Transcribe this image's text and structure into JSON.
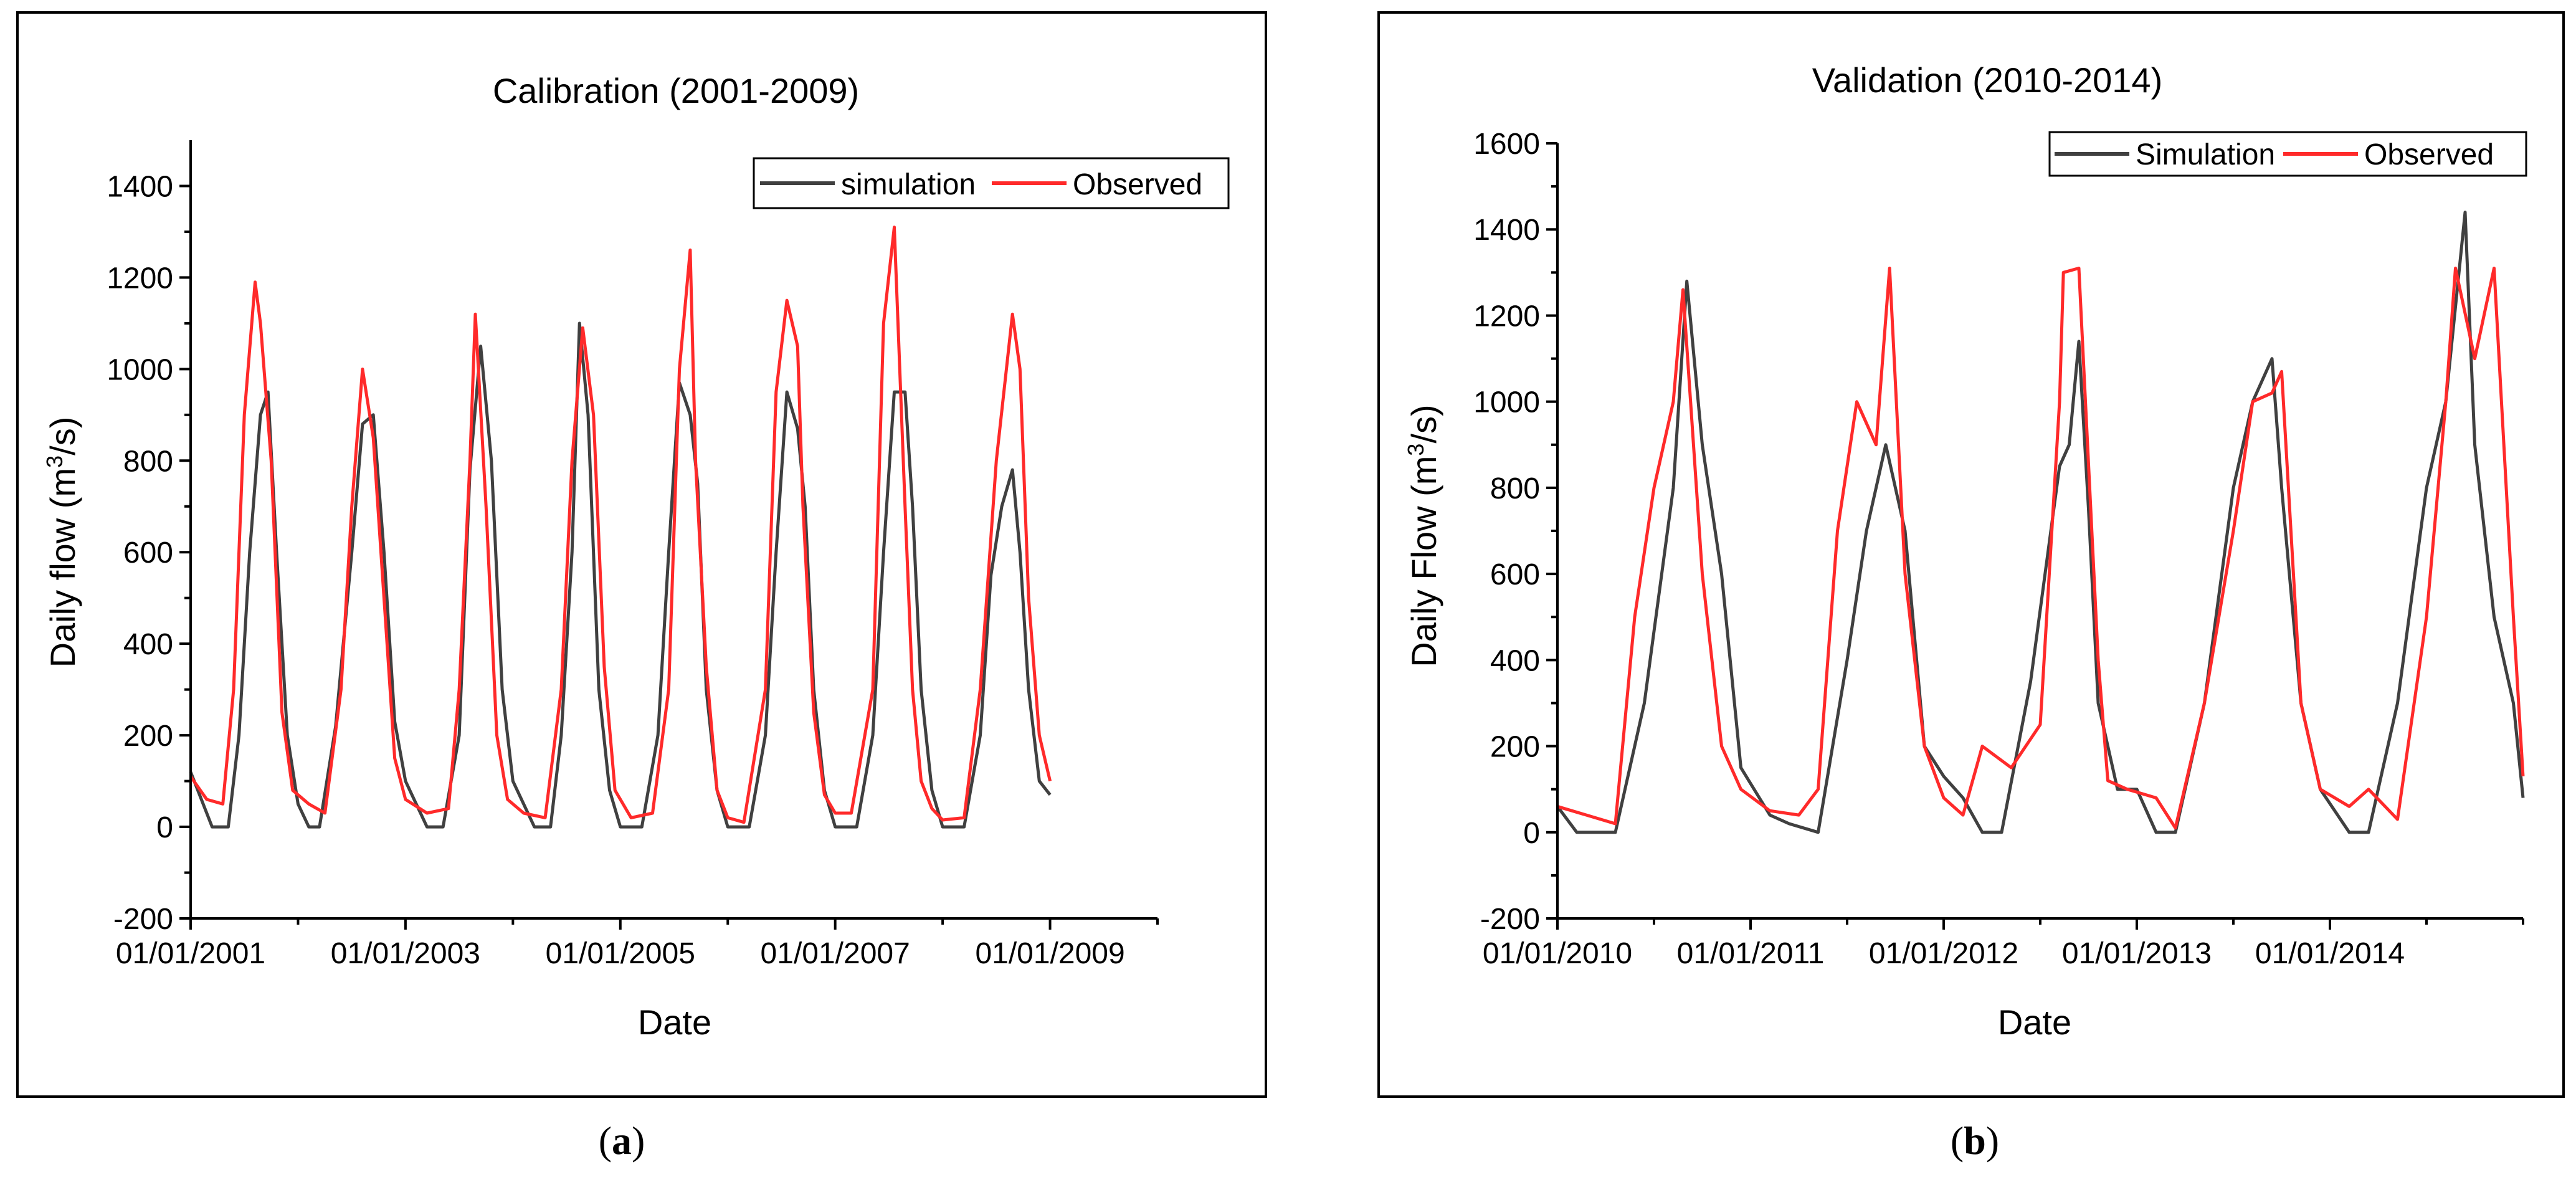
{
  "chart_data": [
    {
      "type": "line",
      "title": "Calibration (2001-2009)",
      "xlabel": "Date",
      "ylabel": "Daily flow (m",
      "ylabel_sup": "3",
      "ylabel_suffix": "/s)",
      "ylim": [
        -200,
        1500
      ],
      "yticks": [
        -200,
        0,
        200,
        400,
        600,
        800,
        1000,
        1200,
        1400
      ],
      "xlim": [
        2001.0,
        2010.0
      ],
      "xticks": [
        2001,
        2003,
        2005,
        2007,
        2009
      ],
      "xtick_labels": [
        "01/01/2001",
        "01/01/2003",
        "01/01/2005",
        "01/01/2007",
        "01/01/2009"
      ],
      "legend": "top-right",
      "caption_letter": "a",
      "series": [
        {
          "name": "simulation",
          "color": "#404040",
          "x": [
            2001.0,
            2001.2,
            2001.35,
            2001.45,
            2001.55,
            2001.65,
            2001.72,
            2001.8,
            2001.9,
            2002.0,
            2002.1,
            2002.2,
            2002.35,
            2002.5,
            2002.6,
            2002.7,
            2002.8,
            2002.9,
            2003.0,
            2003.2,
            2003.35,
            2003.5,
            2003.6,
            2003.7,
            2003.8,
            2003.9,
            2004.0,
            2004.2,
            2004.35,
            2004.45,
            2004.55,
            2004.62,
            2004.7,
            2004.8,
            2004.9,
            2005.0,
            2005.2,
            2005.35,
            2005.45,
            2005.55,
            2005.65,
            2005.72,
            2005.8,
            2005.9,
            2006.0,
            2006.2,
            2006.35,
            2006.45,
            2006.55,
            2006.65,
            2006.72,
            2006.8,
            2006.9,
            2007.0,
            2007.2,
            2007.35,
            2007.45,
            2007.55,
            2007.65,
            2007.72,
            2007.8,
            2007.9,
            2008.0,
            2008.2,
            2008.35,
            2008.45,
            2008.55,
            2008.65,
            2008.72,
            2008.8,
            2008.9,
            2009.0
          ],
          "y": [
            120,
            0,
            0,
            200,
            600,
            900,
            950,
            600,
            200,
            50,
            0,
            0,
            220,
            600,
            880,
            900,
            600,
            230,
            100,
            0,
            0,
            200,
            780,
            1050,
            800,
            300,
            100,
            0,
            0,
            200,
            600,
            1100,
            900,
            300,
            80,
            0,
            0,
            200,
            600,
            970,
            900,
            750,
            300,
            80,
            0,
            0,
            200,
            600,
            950,
            870,
            700,
            300,
            80,
            0,
            0,
            200,
            600,
            950,
            950,
            700,
            300,
            80,
            0,
            0,
            200,
            550,
            700,
            780,
            600,
            300,
            100,
            70
          ]
        },
        {
          "name": "Observed",
          "color": "#ff2a2a",
          "x": [
            2001.0,
            2001.15,
            2001.3,
            2001.4,
            2001.5,
            2001.6,
            2001.65,
            2001.75,
            2001.85,
            2001.95,
            2002.1,
            2002.25,
            2002.4,
            2002.5,
            2002.6,
            2002.7,
            2002.8,
            2002.9,
            2003.0,
            2003.2,
            2003.4,
            2003.5,
            2003.6,
            2003.65,
            2003.75,
            2003.85,
            2003.95,
            2004.1,
            2004.3,
            2004.45,
            2004.55,
            2004.65,
            2004.75,
            2004.85,
            2004.95,
            2005.1,
            2005.3,
            2005.45,
            2005.55,
            2005.65,
            2005.7,
            2005.8,
            2005.9,
            2006.0,
            2006.15,
            2006.35,
            2006.45,
            2006.55,
            2006.65,
            2006.7,
            2006.8,
            2006.9,
            2007.0,
            2007.15,
            2007.35,
            2007.45,
            2007.55,
            2007.65,
            2007.72,
            2007.8,
            2007.9,
            2008.0,
            2008.2,
            2008.35,
            2008.5,
            2008.65,
            2008.72,
            2008.8,
            2008.9,
            2009.0
          ],
          "y": [
            110,
            60,
            50,
            300,
            900,
            1190,
            1100,
            800,
            250,
            80,
            50,
            30,
            300,
            700,
            1000,
            850,
            500,
            150,
            60,
            30,
            40,
            300,
            800,
            1120,
            700,
            200,
            60,
            30,
            20,
            300,
            800,
            1090,
            900,
            350,
            80,
            20,
            30,
            300,
            1000,
            1260,
            800,
            350,
            80,
            20,
            10,
            300,
            950,
            1150,
            1050,
            700,
            250,
            70,
            30,
            30,
            300,
            1100,
            1310,
            700,
            300,
            100,
            40,
            15,
            20,
            300,
            800,
            1120,
            1000,
            500,
            200,
            100
          ]
        }
      ]
    },
    {
      "type": "line",
      "title": "Validation (2010-2014)",
      "xlabel": "Date",
      "ylabel": "Daily Flow (m",
      "ylabel_sup": "3",
      "ylabel_suffix": "/s)",
      "ylim": [
        -200,
        1600
      ],
      "yticks": [
        -200,
        0,
        200,
        400,
        600,
        800,
        1000,
        1200,
        1400,
        1600
      ],
      "xlim": [
        2010.0,
        2015.0
      ],
      "xticks": [
        2010,
        2011,
        2012,
        2013,
        2014
      ],
      "xtick_labels": [
        "01/01/2010",
        "01/01/2011",
        "01/01/2012",
        "01/01/2013",
        "01/01/2014"
      ],
      "legend": "top-right",
      "caption_letter": "b",
      "series": [
        {
          "name": "Simulation",
          "color": "#404040",
          "x": [
            2010.0,
            2010.1,
            2010.3,
            2010.45,
            2010.6,
            2010.67,
            2010.75,
            2010.85,
            2010.95,
            2011.1,
            2011.2,
            2011.35,
            2011.5,
            2011.6,
            2011.7,
            2011.8,
            2011.9,
            2012.0,
            2012.1,
            2012.2,
            2012.3,
            2012.45,
            2012.6,
            2012.65,
            2012.7,
            2012.75,
            2012.8,
            2012.9,
            2013.0,
            2013.1,
            2013.2,
            2013.35,
            2013.5,
            2013.6,
            2013.7,
            2013.75,
            2013.85,
            2013.95,
            2014.1,
            2014.2,
            2014.35,
            2014.5,
            2014.6,
            2014.7,
            2014.75,
            2014.85,
            2014.95,
            2015.0
          ],
          "y": [
            60,
            0,
            0,
            300,
            800,
            1280,
            900,
            600,
            150,
            40,
            20,
            0,
            400,
            700,
            900,
            700,
            200,
            130,
            80,
            0,
            0,
            350,
            850,
            900,
            1140,
            750,
            300,
            100,
            100,
            0,
            0,
            300,
            800,
            1000,
            1100,
            800,
            300,
            100,
            0,
            0,
            300,
            800,
            1000,
            1440,
            900,
            500,
            300,
            80
          ]
        },
        {
          "name": "Observed",
          "color": "#ff2a2a",
          "x": [
            2010.0,
            2010.15,
            2010.3,
            2010.4,
            2010.5,
            2010.6,
            2010.65,
            2010.75,
            2010.85,
            2010.95,
            2011.1,
            2011.25,
            2011.35,
            2011.45,
            2011.55,
            2011.65,
            2011.72,
            2011.8,
            2011.9,
            2012.0,
            2012.1,
            2012.2,
            2012.35,
            2012.5,
            2012.6,
            2012.62,
            2012.7,
            2012.8,
            2012.85,
            2012.95,
            2013.1,
            2013.2,
            2013.35,
            2013.5,
            2013.6,
            2013.7,
            2013.75,
            2013.85,
            2013.95,
            2014.1,
            2014.2,
            2014.35,
            2014.5,
            2014.6,
            2014.65,
            2014.75,
            2014.85,
            2014.95,
            2015.0
          ],
          "y": [
            60,
            40,
            20,
            500,
            800,
            1000,
            1260,
            600,
            200,
            100,
            50,
            40,
            100,
            700,
            1000,
            900,
            1310,
            600,
            200,
            80,
            40,
            200,
            150,
            250,
            1000,
            1300,
            1310,
            400,
            120,
            100,
            80,
            10,
            300,
            700,
            1000,
            1020,
            1070,
            300,
            100,
            60,
            100,
            30,
            500,
            1000,
            1310,
            1100,
            1310,
            500,
            130
          ]
        }
      ]
    }
  ]
}
